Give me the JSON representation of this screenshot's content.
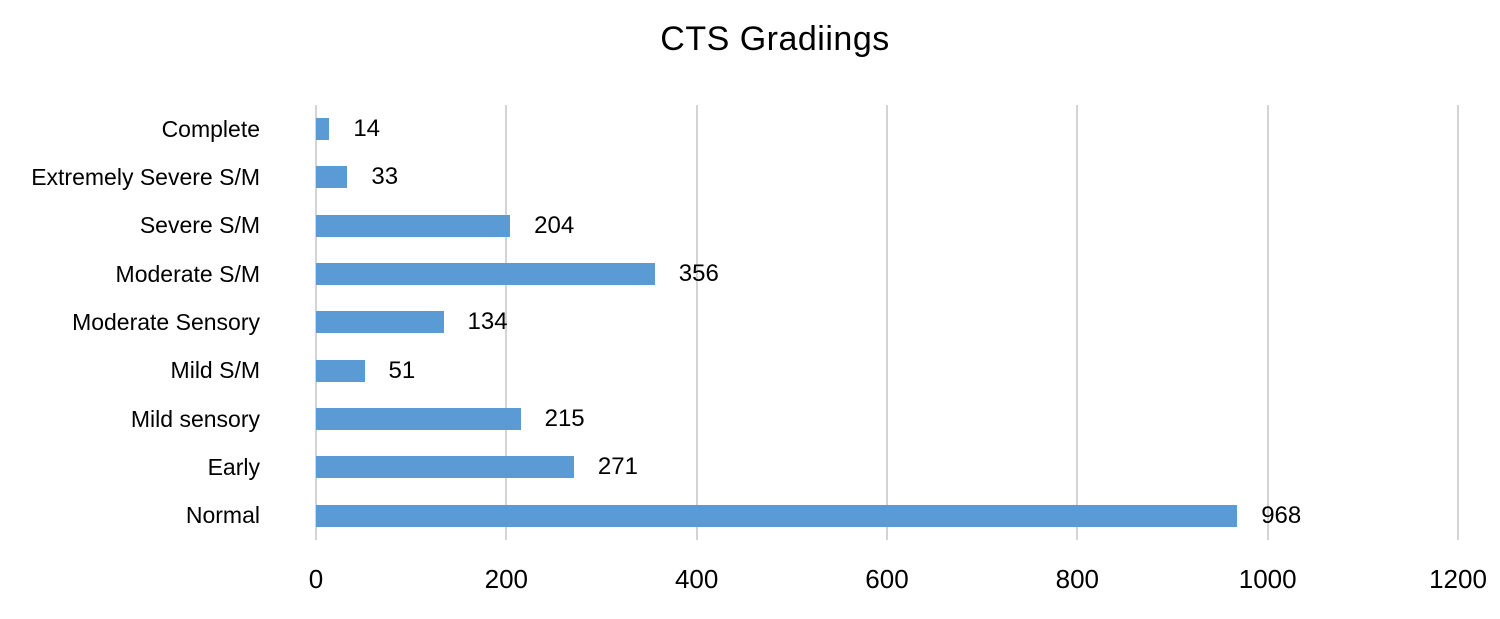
{
  "chart_data": {
    "type": "bar",
    "orientation": "horizontal",
    "title": "CTS Gradiings",
    "categories": [
      "Complete",
      "Extremely Severe S/M",
      "Severe S/M",
      "Moderate S/M",
      "Moderate Sensory",
      "Mild S/M",
      "Mild sensory",
      "Early",
      "Normal"
    ],
    "values": [
      14,
      33,
      204,
      356,
      134,
      51,
      215,
      271,
      968
    ],
    "xlabel": "",
    "ylabel": "",
    "xlim": [
      0,
      1200
    ],
    "xticks": [
      0,
      200,
      400,
      600,
      800,
      1000,
      1200
    ],
    "grid": "vertical-gridlines",
    "legend": "none",
    "data_labels": true,
    "colors": {
      "bar": "#5B9BD5",
      "gridline": "#D4D4D4",
      "text": "#000000",
      "background": "#FFFFFF"
    }
  }
}
